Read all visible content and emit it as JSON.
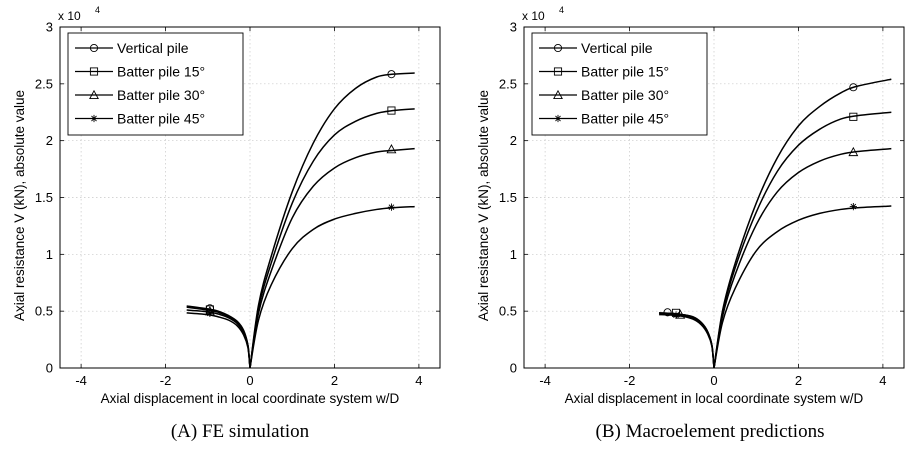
{
  "chart_data": [
    {
      "type": "line",
      "caption": "(A) FE simulation",
      "xlabel": "Axial displacement in local coordinate system w/D",
      "ylabel": "Axial resistance V (kN), absolute value",
      "y_multiplier_label": "x 10",
      "y_multiplier_exp": "4",
      "xlim": [
        -4.5,
        4.5
      ],
      "ylim": [
        0,
        3
      ],
      "xticks": [
        "-4",
        "-2",
        "0",
        "2",
        "4"
      ],
      "yticks": [
        "0",
        "0.5",
        "1",
        "1.5",
        "2",
        "2.5",
        "3"
      ],
      "grid": true,
      "legend_position": "top-left",
      "series": [
        {
          "name": "Vertical pile",
          "marker": "circle",
          "x_right": [
            0,
            0.2,
            0.5,
            1,
            1.5,
            2,
            2.5,
            3,
            3.4,
            3.9
          ],
          "y_right": [
            0,
            0.55,
            0.98,
            1.55,
            1.98,
            2.28,
            2.46,
            2.56,
            2.585,
            2.595
          ],
          "x_left": [
            0,
            -0.05,
            -0.15,
            -0.3,
            -0.5,
            -0.75,
            -1,
            -1.5
          ],
          "y_left": [
            0,
            0.2,
            0.33,
            0.41,
            0.46,
            0.5,
            0.52,
            0.545
          ],
          "marker_points": [
            [
              3.35,
              2.585
            ],
            [
              -0.95,
              0.525
            ]
          ]
        },
        {
          "name": "Batter pile 15°",
          "marker": "square",
          "x_right": [
            0,
            0.2,
            0.5,
            1,
            1.5,
            2,
            2.5,
            3,
            3.4,
            3.9
          ],
          "y_right": [
            0,
            0.52,
            0.92,
            1.45,
            1.82,
            2.05,
            2.17,
            2.24,
            2.265,
            2.28
          ],
          "x_left": [
            0,
            -0.05,
            -0.15,
            -0.3,
            -0.5,
            -0.75,
            -1,
            -1.5
          ],
          "y_left": [
            0,
            0.2,
            0.32,
            0.4,
            0.45,
            0.49,
            0.51,
            0.535
          ],
          "marker_points": [
            [
              3.35,
              2.265
            ],
            [
              -0.95,
              0.515
            ]
          ]
        },
        {
          "name": "Batter pile 30°",
          "marker": "triangle",
          "x_right": [
            0,
            0.2,
            0.5,
            1,
            1.5,
            2,
            2.5,
            3,
            3.4,
            3.9
          ],
          "y_right": [
            0,
            0.48,
            0.85,
            1.32,
            1.6,
            1.76,
            1.85,
            1.9,
            1.915,
            1.93
          ],
          "x_left": [
            0,
            -0.05,
            -0.15,
            -0.3,
            -0.5,
            -0.75,
            -1,
            -1.5
          ],
          "y_left": [
            0,
            0.2,
            0.31,
            0.39,
            0.44,
            0.475,
            0.495,
            0.51
          ],
          "marker_points": [
            [
              3.35,
              1.925
            ],
            [
              -0.95,
              0.5
            ]
          ]
        },
        {
          "name": "Batter pile 45°",
          "marker": "star",
          "x_right": [
            0,
            0.2,
            0.5,
            1,
            1.5,
            2,
            2.5,
            3,
            3.4,
            3.9
          ],
          "y_right": [
            0,
            0.42,
            0.73,
            1.05,
            1.22,
            1.31,
            1.36,
            1.395,
            1.41,
            1.42
          ],
          "x_left": [
            0,
            -0.05,
            -0.15,
            -0.3,
            -0.5,
            -0.75,
            -1,
            -1.5
          ],
          "y_left": [
            0,
            0.18,
            0.29,
            0.37,
            0.42,
            0.45,
            0.47,
            0.485
          ],
          "marker_points": [
            [
              3.35,
              1.415
            ],
            [
              -0.95,
              0.48
            ]
          ]
        }
      ]
    },
    {
      "type": "line",
      "caption": "(B) Macroelement predictions",
      "xlabel": "Axial displacement in local coordinate system w/D",
      "ylabel": "Axial resistance V (kN), absolute value",
      "y_multiplier_label": "x 10",
      "y_multiplier_exp": "4",
      "xlim": [
        -4.5,
        4.5
      ],
      "ylim": [
        0,
        3
      ],
      "xticks": [
        "-4",
        "-2",
        "0",
        "2",
        "4"
      ],
      "yticks": [
        "0",
        "0.5",
        "1",
        "1.5",
        "2",
        "2.5",
        "3"
      ],
      "grid": true,
      "legend_position": "top-left",
      "series": [
        {
          "name": "Vertical pile",
          "marker": "circle",
          "x_right": [
            0,
            0.2,
            0.5,
            1,
            1.5,
            2,
            2.5,
            3,
            3.4,
            4.2
          ],
          "y_right": [
            0,
            0.5,
            0.92,
            1.45,
            1.85,
            2.13,
            2.3,
            2.42,
            2.48,
            2.54
          ],
          "x_left": [
            0,
            -0.05,
            -0.15,
            -0.3,
            -0.5,
            -0.75,
            -1,
            -1.3
          ],
          "y_left": [
            0,
            0.2,
            0.32,
            0.4,
            0.45,
            0.47,
            0.48,
            0.485
          ],
          "marker_points": [
            [
              3.3,
              2.47
            ],
            [
              -1.1,
              0.49
            ]
          ]
        },
        {
          "name": "Batter pile 15°",
          "marker": "square",
          "x_right": [
            0,
            0.2,
            0.5,
            1,
            1.5,
            2,
            2.5,
            3,
            3.4,
            4.2
          ],
          "y_right": [
            0,
            0.48,
            0.88,
            1.37,
            1.73,
            1.96,
            2.1,
            2.19,
            2.22,
            2.25
          ],
          "x_left": [
            0,
            -0.05,
            -0.15,
            -0.3,
            -0.5,
            -0.75,
            -1,
            -1.3
          ],
          "y_left": [
            0,
            0.2,
            0.32,
            0.4,
            0.45,
            0.47,
            0.48,
            0.485
          ],
          "marker_points": [
            [
              3.3,
              2.21
            ],
            [
              -0.9,
              0.485
            ]
          ]
        },
        {
          "name": "Batter pile 30°",
          "marker": "triangle",
          "x_right": [
            0,
            0.2,
            0.5,
            1,
            1.5,
            2,
            2.5,
            3,
            3.4,
            4.2
          ],
          "y_right": [
            0,
            0.45,
            0.82,
            1.26,
            1.55,
            1.72,
            1.82,
            1.88,
            1.905,
            1.93
          ],
          "x_left": [
            0,
            -0.05,
            -0.15,
            -0.3,
            -0.5,
            -0.75,
            -1,
            -1.3
          ],
          "y_left": [
            0,
            0.2,
            0.31,
            0.39,
            0.44,
            0.465,
            0.475,
            0.48
          ],
          "marker_points": [
            [
              3.3,
              1.9
            ],
            [
              -0.8,
              0.47
            ]
          ]
        },
        {
          "name": "Batter pile 45°",
          "marker": "star",
          "x_right": [
            0,
            0.2,
            0.5,
            1,
            1.5,
            2,
            2.5,
            3,
            3.4,
            4.2
          ],
          "y_right": [
            0,
            0.4,
            0.7,
            1.03,
            1.2,
            1.3,
            1.36,
            1.395,
            1.41,
            1.425
          ],
          "x_left": [
            0,
            -0.05,
            -0.15,
            -0.3,
            -0.5,
            -0.75,
            -1,
            -1.3
          ],
          "y_left": [
            0,
            0.19,
            0.3,
            0.38,
            0.43,
            0.455,
            0.465,
            0.47
          ],
          "marker_points": [
            [
              3.3,
              1.42
            ],
            [
              -0.9,
              0.465
            ]
          ]
        }
      ]
    }
  ]
}
